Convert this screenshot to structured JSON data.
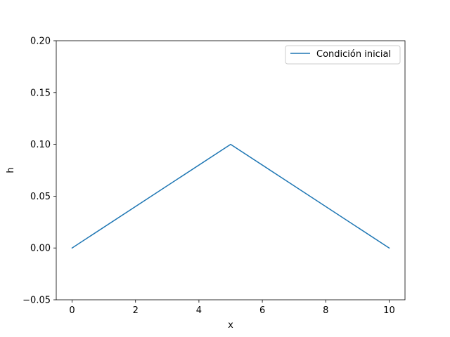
{
  "chart_data": {
    "type": "line",
    "title": "",
    "xlabel": "x",
    "ylabel": "h",
    "xlim": [
      -0.5,
      10.5
    ],
    "ylim": [
      -0.05,
      0.2
    ],
    "xticks": [
      0,
      2,
      4,
      6,
      8,
      10
    ],
    "xtick_labels": [
      "0",
      "2",
      "4",
      "6",
      "8",
      "10"
    ],
    "yticks": [
      -0.05,
      0.0,
      0.05,
      0.1,
      0.15,
      0.2
    ],
    "ytick_labels": [
      "−0.05",
      "0.00",
      "0.05",
      "0.10",
      "0.15",
      "0.20"
    ],
    "grid": false,
    "legend_position": "upper right",
    "series": [
      {
        "name": "Condición inicial",
        "color": "#1f77b4",
        "x": [
          0,
          5,
          10
        ],
        "y": [
          0.0,
          0.1,
          0.0
        ]
      }
    ]
  }
}
